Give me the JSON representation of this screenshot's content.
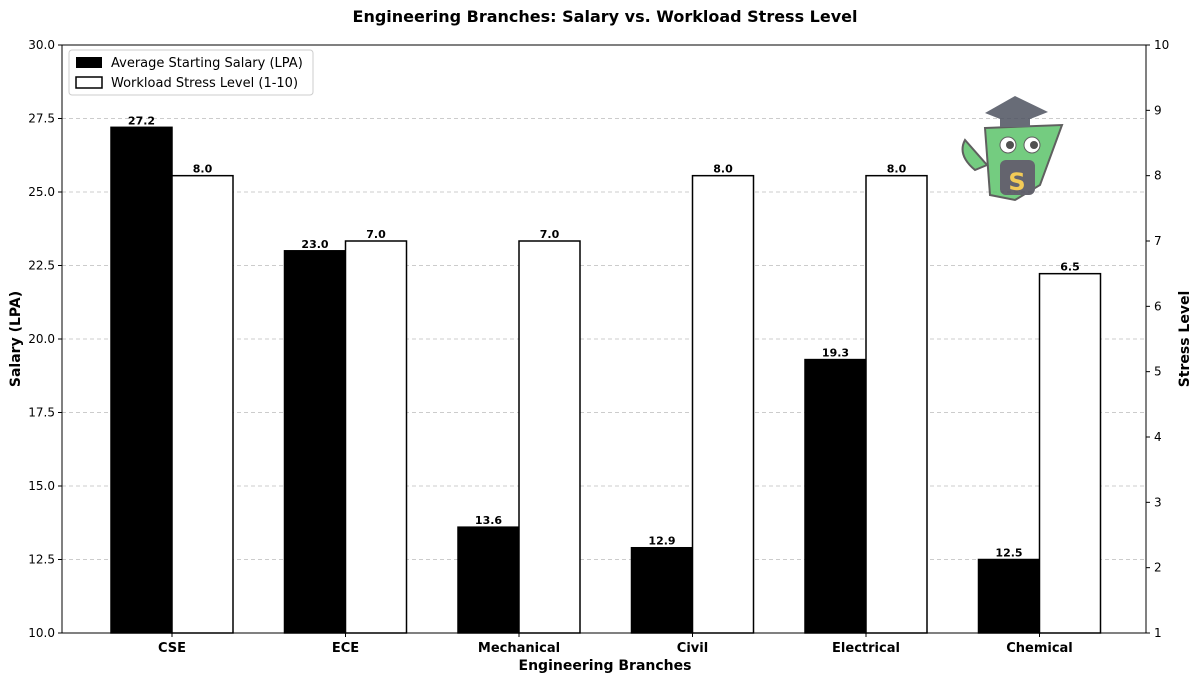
{
  "chart_data": {
    "type": "bar",
    "title": "Engineering Branches: Salary vs. Workload Stress Level",
    "xlabel": "Engineering Branches",
    "ylabel": "Salary (LPA)",
    "y2label": "Stress Level",
    "categories": [
      "CSE",
      "ECE",
      "Mechanical",
      "Civil",
      "Electrical",
      "Chemical"
    ],
    "series": [
      {
        "name": "Average Starting Salary (LPA)",
        "axis": "left",
        "color": "#000000",
        "values": [
          27.2,
          23.0,
          13.6,
          12.9,
          19.3,
          12.5
        ],
        "labels": [
          "27.2",
          "23.0",
          "13.6",
          "12.9",
          "19.3",
          "12.5"
        ]
      },
      {
        "name": "Workload Stress Level (1-10)",
        "axis": "right",
        "color": "#ffffff",
        "values": [
          8.0,
          7.0,
          7.0,
          8.0,
          8.0,
          6.5
        ],
        "labels": [
          "8.0",
          "7.0",
          "7.0",
          "8.0",
          "8.0",
          "6.5"
        ]
      }
    ],
    "ylim": [
      10,
      30
    ],
    "y2lim": [
      1,
      10
    ],
    "yticks": [
      "10.0",
      "12.5",
      "15.0",
      "17.5",
      "20.0",
      "22.5",
      "25.0",
      "27.5",
      "30.0"
    ],
    "y2ticks": [
      "1",
      "2",
      "3",
      "4",
      "5",
      "6",
      "7",
      "8",
      "9",
      "10"
    ],
    "grid": "horizontal dashed",
    "legend": "top-left"
  },
  "logo": {
    "name": "graduation-mascot",
    "letter": "S"
  }
}
